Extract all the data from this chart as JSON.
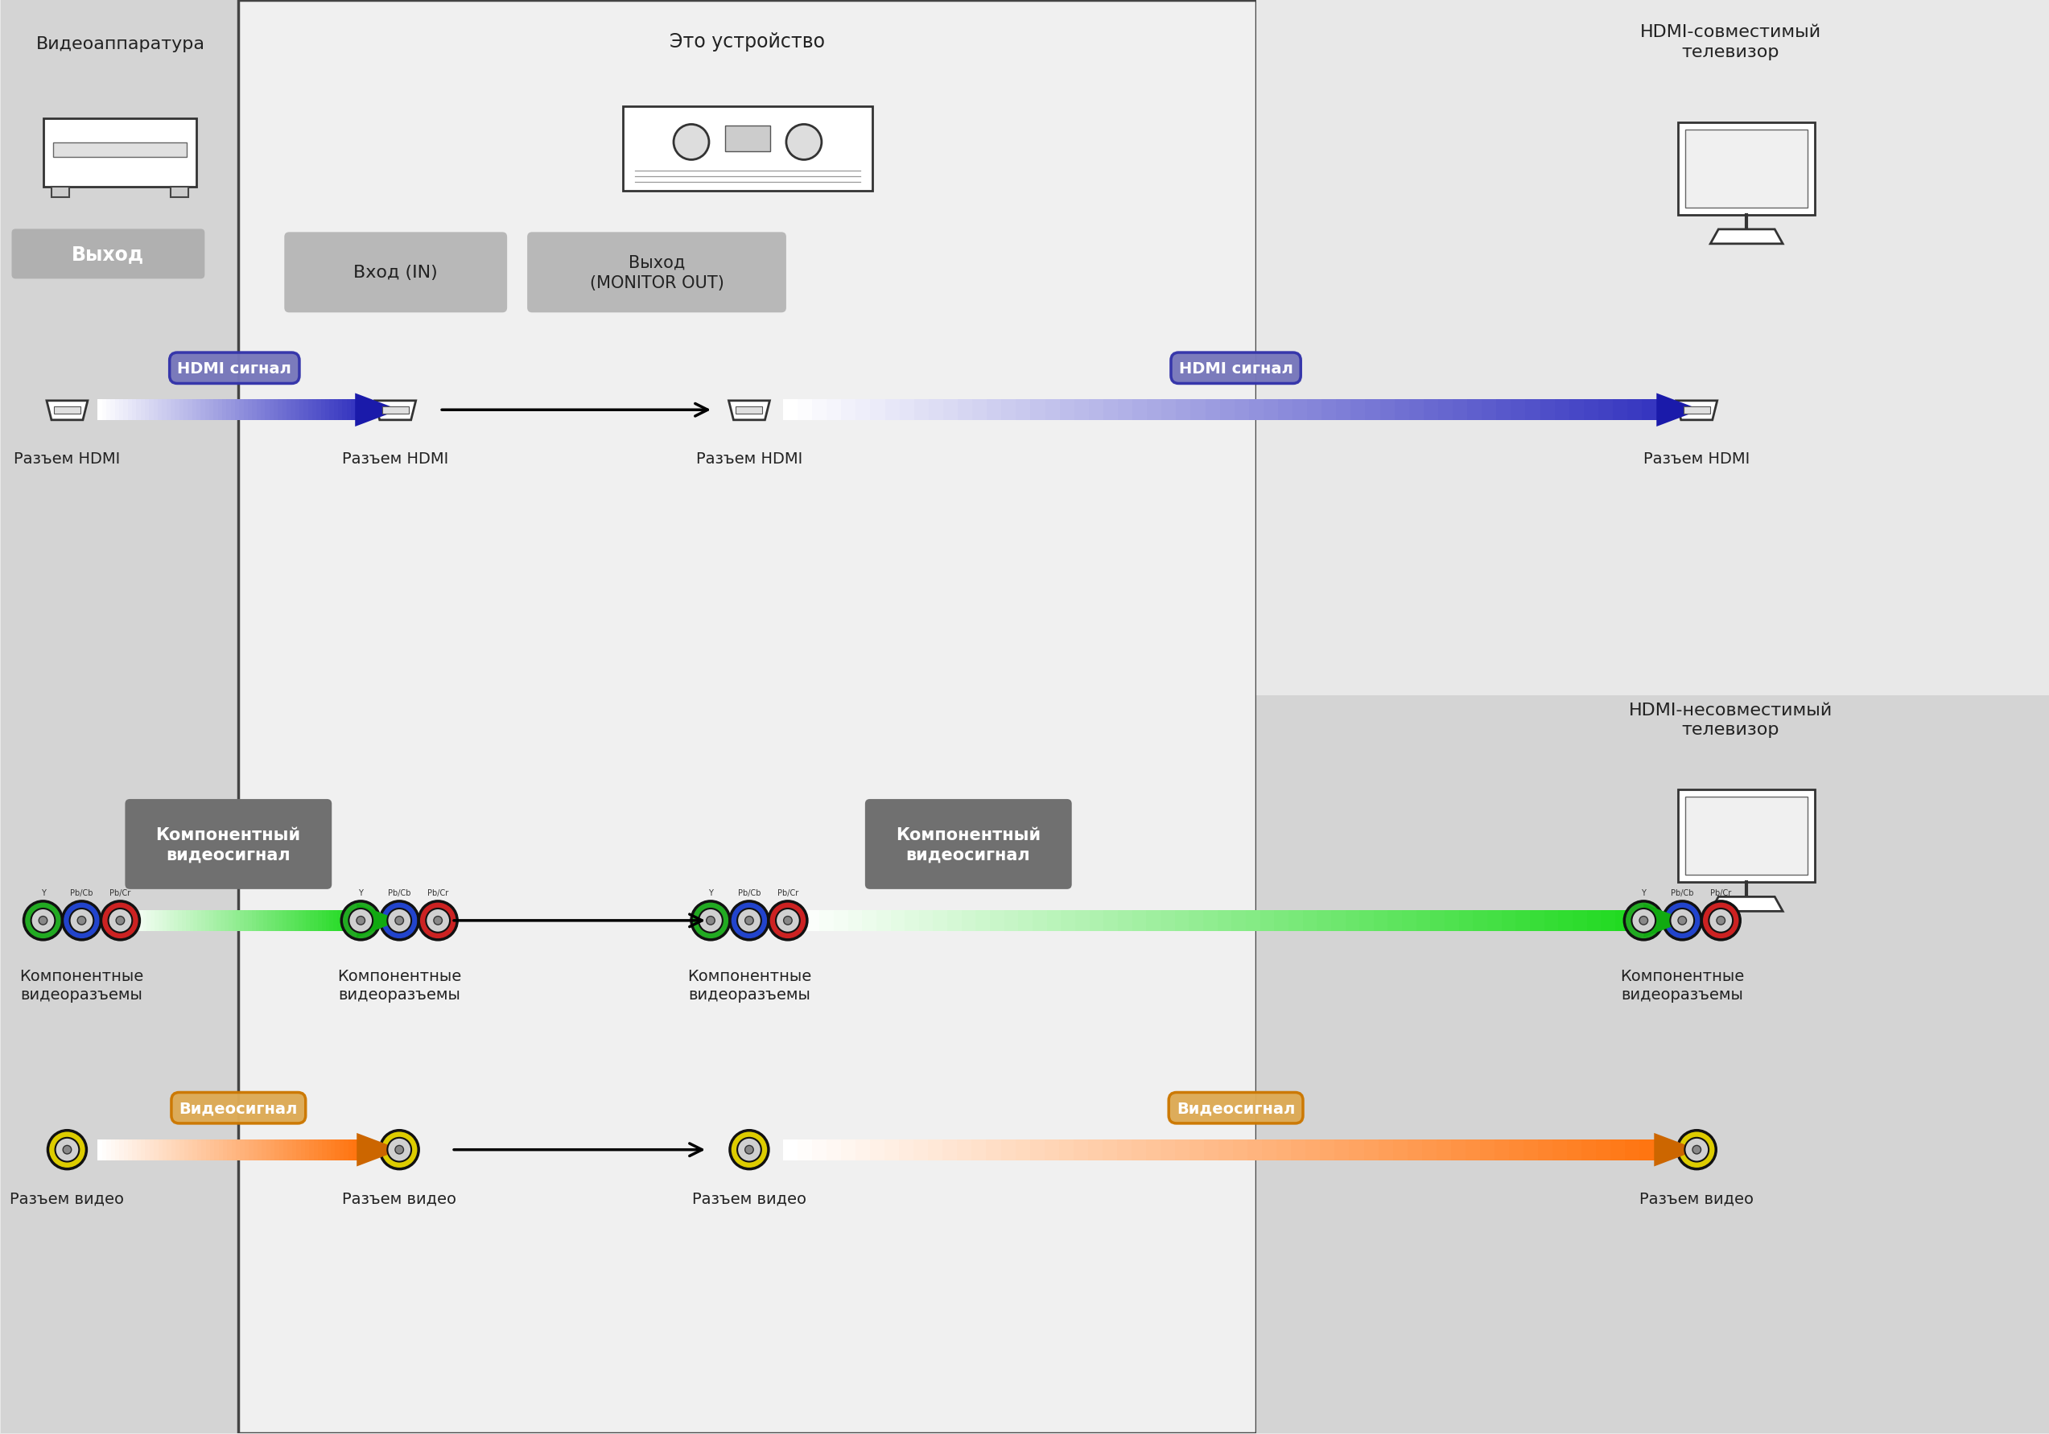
{
  "bg_color": "#e8e8e8",
  "center_panel_color": "#e0e0e0",
  "left_panel_color": "#d4d4d4",
  "right_top_panel_color": "#e8e8e8",
  "right_bottom_panel_color": "#d4d4d4",
  "labels": {
    "left_device": "Видеоаппаратура",
    "left_output": "Выход",
    "center_device": "Это устройство",
    "input_box": "Вход (IN)",
    "output_box": "Выход\n(MONITOR OUT)",
    "right_top_device": "HDMI-совместимый\nтелевизор",
    "right_bottom_device": "HDMI-несовместимый\nтелевизор",
    "hdmi_signal": "HDMI сигнал",
    "component_signal": "Компонентный\nвидеосигнал",
    "video_signal": "Видеосигнал",
    "hdmi_connector": "Разъем HDMI",
    "component_connector": "Компонентные\nвидеоразъемы",
    "video_connector": "Разъем видео"
  }
}
